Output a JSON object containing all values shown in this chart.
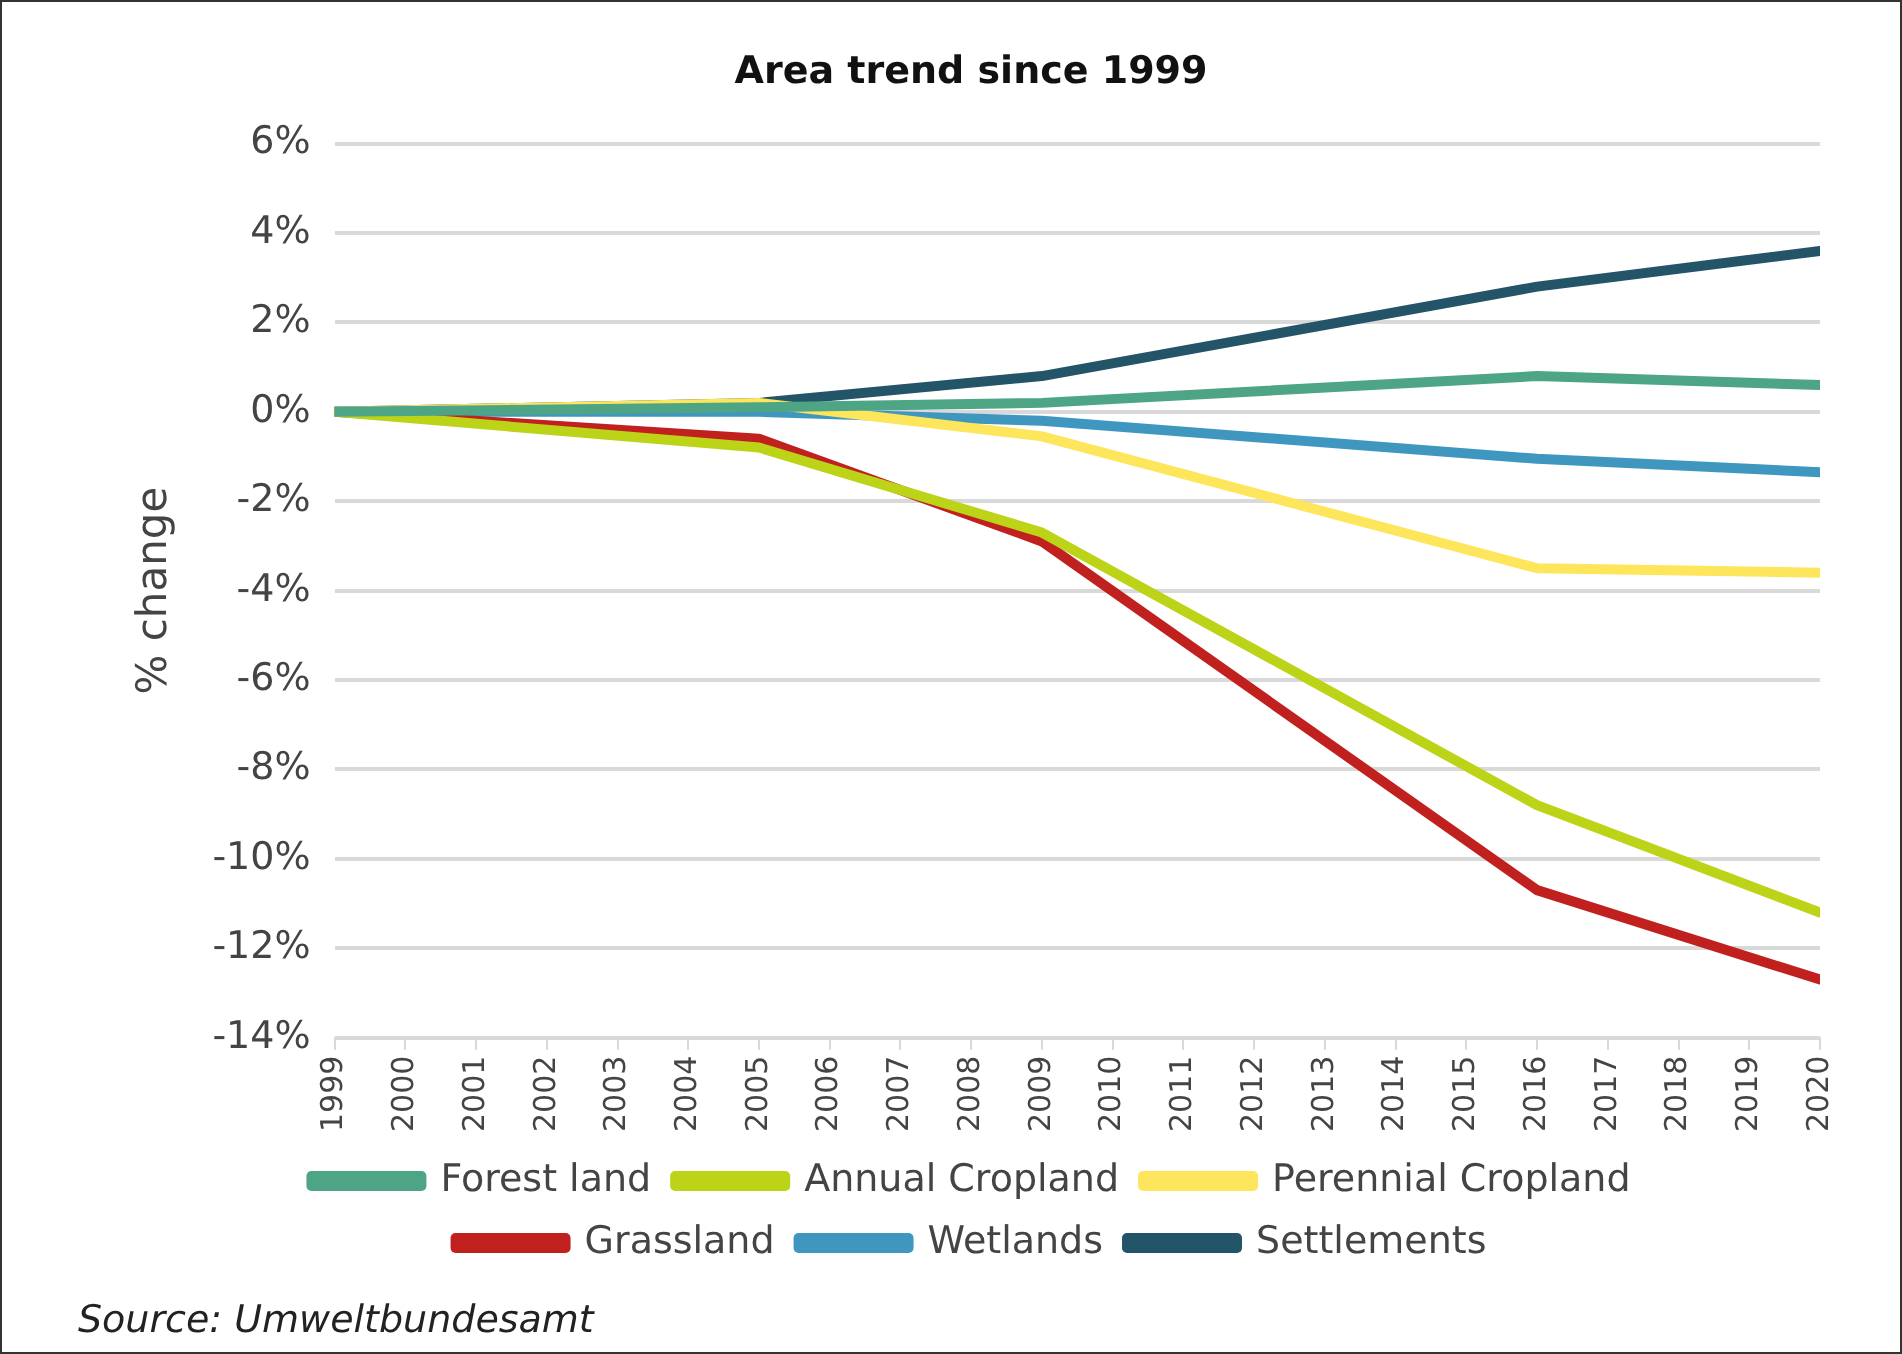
{
  "chart_data": {
    "type": "line",
    "title": "Area trend since 1999",
    "ylabel": "% change",
    "x": [
      1999,
      2005,
      2009,
      2016,
      2020
    ],
    "xlim": [
      1999,
      2020
    ],
    "xticks": [
      1999,
      2000,
      2001,
      2002,
      2003,
      2004,
      2005,
      2006,
      2007,
      2008,
      2009,
      2010,
      2011,
      2012,
      2013,
      2014,
      2015,
      2016,
      2017,
      2018,
      2019,
      2020
    ],
    "ylim": [
      -14,
      6
    ],
    "yticks": [
      {
        "value": -14,
        "label": "-14%"
      },
      {
        "value": -12,
        "label": "-12%"
      },
      {
        "value": -10,
        "label": "-10%"
      },
      {
        "value": -8,
        "label": "-8%"
      },
      {
        "value": -6,
        "label": "-6%"
      },
      {
        "value": -4,
        "label": "-4%"
      },
      {
        "value": -2,
        "label": "-2%"
      },
      {
        "value": 0,
        "label": "0%"
      },
      {
        "value": 2,
        "label": "2%"
      },
      {
        "value": 4,
        "label": "4%"
      },
      {
        "value": 6,
        "label": "6%"
      }
    ],
    "series": [
      {
        "name": "Forest land",
        "color": "#4ea585",
        "values": [
          0,
          0.1,
          0.2,
          0.8,
          0.6
        ]
      },
      {
        "name": "Annual Cropland",
        "color": "#bdd318",
        "values": [
          0,
          -0.8,
          -2.7,
          -8.8,
          -11.2
        ]
      },
      {
        "name": "Perennial Cropland",
        "color": "#fde55c",
        "values": [
          0,
          0.2,
          -0.55,
          -3.5,
          -3.6
        ]
      },
      {
        "name": "Grassland",
        "color": "#c0211f",
        "values": [
          0,
          -0.6,
          -2.9,
          -10.7,
          -12.7
        ]
      },
      {
        "name": "Wetlands",
        "color": "#3f97bf",
        "values": [
          0,
          0,
          -0.2,
          -1.05,
          -1.35
        ]
      },
      {
        "name": "Settlements",
        "color": "#245468",
        "values": [
          0,
          0.2,
          0.8,
          2.8,
          3.6
        ]
      }
    ],
    "grid": "y",
    "legend": "bottom",
    "marker": "none",
    "line_style": "solid",
    "annotations": [
      "Source: Umweltbundesamt"
    ]
  }
}
